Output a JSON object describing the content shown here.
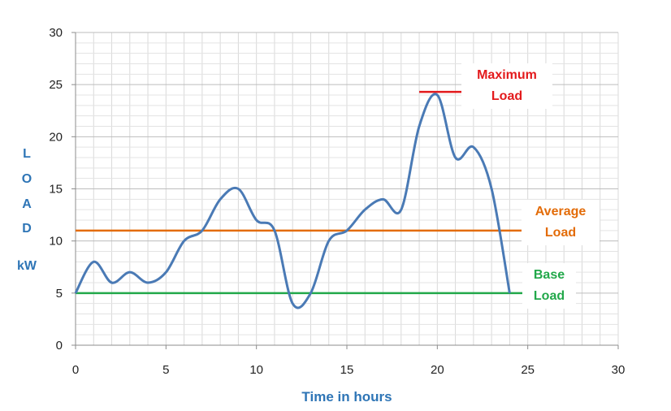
{
  "chart_data": {
    "type": "line",
    "xlabel": "Time in hours",
    "ylabel_letters": [
      "L",
      "O",
      "A",
      "D"
    ],
    "ylabel_unit": "kW",
    "xlim": [
      0,
      30
    ],
    "ylim": [
      0,
      30
    ],
    "x_ticks": [
      "0",
      "5",
      "10",
      "15",
      "20",
      "25",
      "30"
    ],
    "y_ticks": [
      "0",
      "5",
      "10",
      "15",
      "20",
      "25",
      "30"
    ],
    "grid": true,
    "series": [
      {
        "color": "#4a7ab5",
        "x": [
          0,
          1,
          2,
          3,
          4,
          5,
          6,
          7,
          8,
          9,
          10,
          11,
          12,
          13,
          14,
          15,
          16,
          17,
          18,
          19,
          20,
          21,
          22,
          23,
          24
        ],
        "y": [
          5,
          8,
          6,
          7,
          6,
          7,
          10,
          11,
          14,
          15,
          12,
          11,
          4,
          5,
          10,
          11,
          13,
          14,
          13,
          21,
          24,
          18,
          19,
          15,
          5
        ]
      }
    ],
    "reference_lines": [
      {
        "label_lines": [
          "Maximum",
          "Load"
        ],
        "y": 24.3,
        "x_range": [
          19,
          21.5
        ],
        "color": "#e31a1c"
      },
      {
        "label_lines": [
          "Average",
          "Load"
        ],
        "y": 11,
        "x_range": [
          0,
          25
        ],
        "color": "#e36c09"
      },
      {
        "label_lines": [
          "Base",
          "Load"
        ],
        "y": 5,
        "x_range": [
          0,
          25
        ],
        "color": "#22a84a"
      }
    ]
  }
}
